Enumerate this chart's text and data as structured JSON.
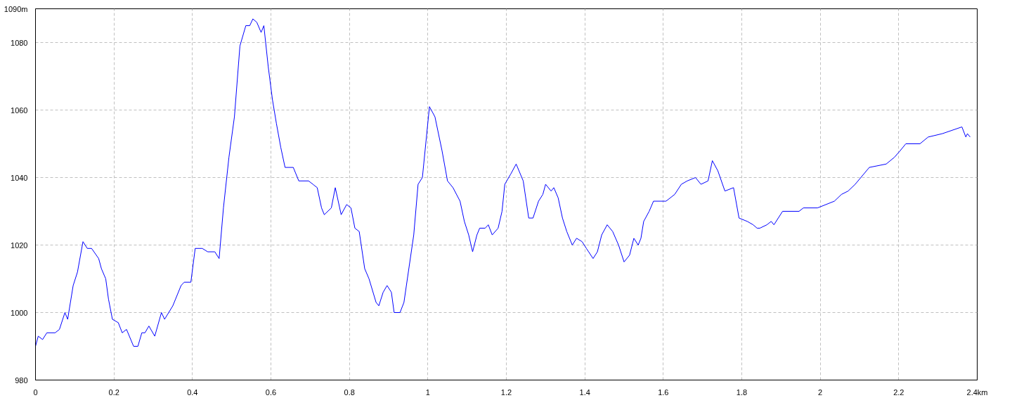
{
  "chart_data": {
    "type": "line",
    "x": [
      0,
      0.007,
      0.018,
      0.029,
      0.05,
      0.061,
      0.075,
      0.082,
      0.096,
      0.107,
      0.121,
      0.132,
      0.143,
      0.161,
      0.168,
      0.179,
      0.186,
      0.196,
      0.211,
      0.221,
      0.232,
      0.25,
      0.261,
      0.271,
      0.279,
      0.289,
      0.304,
      0.321,
      0.329,
      0.35,
      0.371,
      0.379,
      0.396,
      0.407,
      0.425,
      0.439,
      0.457,
      0.468,
      0.479,
      0.493,
      0.507,
      0.521,
      0.536,
      0.546,
      0.554,
      0.564,
      0.575,
      0.582,
      0.593,
      0.604,
      0.614,
      0.625,
      0.636,
      0.657,
      0.671,
      0.696,
      0.707,
      0.718,
      0.729,
      0.736,
      0.754,
      0.764,
      0.779,
      0.793,
      0.804,
      0.814,
      0.825,
      0.839,
      0.85,
      0.868,
      0.875,
      0.886,
      0.896,
      0.907,
      0.914,
      0.929,
      0.939,
      0.964,
      0.975,
      0.986,
      1.004,
      1.018,
      1.036,
      1.05,
      1.064,
      1.082,
      1.093,
      1.104,
      1.114,
      1.125,
      1.132,
      1.146,
      1.154,
      1.164,
      1.179,
      1.189,
      1.196,
      1.211,
      1.225,
      1.243,
      1.257,
      1.268,
      1.282,
      1.293,
      1.3,
      1.314,
      1.321,
      1.332,
      1.343,
      1.354,
      1.368,
      1.379,
      1.393,
      1.404,
      1.421,
      1.432,
      1.443,
      1.457,
      1.471,
      1.486,
      1.5,
      1.514,
      1.525,
      1.536,
      1.543,
      1.55,
      1.564,
      1.575,
      1.593,
      1.607,
      1.629,
      1.646,
      1.661,
      1.682,
      1.696,
      1.714,
      1.725,
      1.739,
      1.757,
      1.779,
      1.793,
      1.814,
      1.829,
      1.839,
      1.846,
      1.864,
      1.875,
      1.882,
      1.904,
      1.946,
      1.957,
      1.993,
      2.036,
      2.054,
      2.071,
      2.089,
      2.125,
      2.168,
      2.189,
      2.204,
      2.218,
      2.254,
      2.275,
      2.311,
      2.361,
      2.371,
      2.375,
      2.382
    ],
    "series": [
      {
        "color": "#0000ff",
        "values": [
          990,
          993,
          992,
          994,
          994,
          995,
          1000,
          998,
          1008,
          1012,
          1021,
          1019,
          1019,
          1016,
          1013,
          1010,
          1004,
          998,
          997,
          994,
          995,
          990,
          990,
          994,
          994,
          996,
          993,
          1000,
          998,
          1002,
          1008,
          1009,
          1009,
          1019,
          1019,
          1018,
          1018,
          1016,
          1031,
          1046,
          1058,
          1079,
          1085,
          1085,
          1087,
          1086,
          1083,
          1085,
          1073,
          1063,
          1056,
          1049,
          1043,
          1043,
          1039,
          1039,
          1038,
          1037,
          1031,
          1029,
          1031,
          1037,
          1029,
          1032,
          1031,
          1025,
          1024,
          1013,
          1010,
          1003,
          1002,
          1006,
          1008,
          1006,
          1000,
          1000,
          1003,
          1023,
          1038,
          1040,
          1061,
          1058,
          1048,
          1039,
          1037,
          1033,
          1027,
          1023,
          1018,
          1023,
          1025,
          1025,
          1026,
          1023,
          1025,
          1030,
          1038,
          1041,
          1044,
          1039,
          1028,
          1028,
          1033,
          1035,
          1038,
          1036,
          1037,
          1034,
          1028,
          1024,
          1020,
          1022,
          1021,
          1019,
          1016,
          1018,
          1023,
          1026,
          1024,
          1020,
          1015,
          1017,
          1022,
          1020,
          1022,
          1027,
          1030,
          1033,
          1033,
          1033,
          1035,
          1038,
          1039,
          1040,
          1038,
          1039,
          1045,
          1042,
          1036,
          1037,
          1028,
          1027,
          1026,
          1025,
          1025,
          1026,
          1027,
          1026,
          1030,
          1030,
          1031,
          1031,
          1033,
          1035,
          1036,
          1038,
          1043,
          1044,
          1046,
          1048,
          1050,
          1050,
          1052,
          1053,
          1055,
          1052,
          1053,
          1052
        ]
      }
    ],
    "xlim": [
      0,
      2.4
    ],
    "xticks": [
      0,
      0.2,
      0.4,
      0.6,
      0.8,
      1,
      1.2,
      1.4,
      1.6,
      1.8,
      2,
      2.2,
      {
        "value": 2.4,
        "label": "2.4km"
      }
    ],
    "ylim": [
      980,
      1090
    ],
    "yticks": [
      980,
      1000,
      1020,
      1040,
      1060,
      1080,
      {
        "value": 1090,
        "label": "1090m"
      }
    ],
    "grid": true,
    "line_style": "solid"
  }
}
